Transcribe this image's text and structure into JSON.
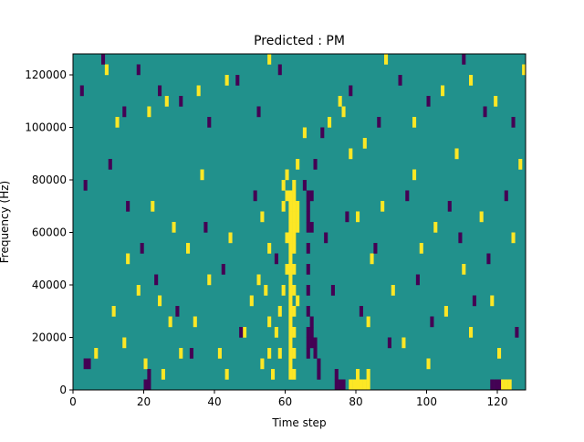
{
  "chart_data": {
    "type": "heatmap",
    "title": "Predicted : PM",
    "xlabel": "Time step",
    "ylabel": "Frequency (Hz)",
    "xlim": [
      0,
      128
    ],
    "ylim": [
      0,
      128000
    ],
    "x_ticks": [
      0,
      20,
      40,
      60,
      80,
      100,
      120
    ],
    "y_ticks": [
      0,
      20000,
      40000,
      60000,
      80000,
      100000,
      120000
    ],
    "x_tick_labels": [
      "0",
      "20",
      "40",
      "60",
      "80",
      "100",
      "120"
    ],
    "y_tick_labels": [
      "0",
      "20000",
      "40000",
      "60000",
      "80000",
      "100000",
      "120000"
    ],
    "grid": false,
    "legend": false,
    "colors": {
      "background": "#21918c",
      "high": "#fde725",
      "low": "#440154"
    },
    "background_value": 0,
    "cell_height_hz": 4000,
    "cells": [
      [
        61,
        4000,
        1
      ],
      [
        61,
        8000,
        1
      ],
      [
        61,
        12000,
        1
      ],
      [
        61,
        16000,
        1
      ],
      [
        61,
        20000,
        1
      ],
      [
        61,
        24000,
        1
      ],
      [
        61,
        28000,
        1
      ],
      [
        61,
        32000,
        1
      ],
      [
        61,
        36000,
        1
      ],
      [
        61,
        40000,
        1
      ],
      [
        61,
        44000,
        1
      ],
      [
        61,
        48000,
        1
      ],
      [
        61,
        52000,
        1
      ],
      [
        61,
        56000,
        1
      ],
      [
        61,
        60000,
        1
      ],
      [
        61,
        64000,
        1
      ],
      [
        61,
        68000,
        1
      ],
      [
        61,
        72000,
        1
      ],
      [
        62,
        4000,
        1
      ],
      [
        62,
        12000,
        1
      ],
      [
        62,
        20000,
        1
      ],
      [
        62,
        28000,
        1
      ],
      [
        62,
        36000,
        1
      ],
      [
        62,
        44000,
        1
      ],
      [
        62,
        52000,
        1
      ],
      [
        62,
        56000,
        1
      ],
      [
        62,
        60000,
        1
      ],
      [
        62,
        64000,
        1
      ],
      [
        62,
        68000,
        1
      ],
      [
        62,
        72000,
        1
      ],
      [
        62,
        76000,
        1
      ],
      [
        63,
        32000,
        1
      ],
      [
        63,
        60000,
        1
      ],
      [
        63,
        64000,
        1
      ],
      [
        63,
        68000,
        1
      ],
      [
        63,
        84000,
        1
      ],
      [
        60,
        56000,
        1
      ],
      [
        60,
        72000,
        1
      ],
      [
        60,
        80000,
        1
      ],
      [
        59,
        68000,
        1
      ],
      [
        59,
        76000,
        1
      ],
      [
        78,
        0,
        1
      ],
      [
        79,
        0,
        1
      ],
      [
        80,
        0,
        1
      ],
      [
        81,
        0,
        1
      ],
      [
        82,
        0,
        1
      ],
      [
        83,
        0,
        1
      ],
      [
        80,
        4000,
        1
      ],
      [
        83,
        4000,
        1
      ],
      [
        121,
        0,
        1
      ],
      [
        122,
        0,
        1
      ],
      [
        123,
        0,
        1
      ],
      [
        20,
        0,
        -1
      ],
      [
        21,
        0,
        -1
      ],
      [
        21,
        4000,
        -1
      ],
      [
        4,
        8000,
        -1
      ],
      [
        3,
        8000,
        -1
      ],
      [
        66,
        12000,
        -1
      ],
      [
        66,
        16000,
        -1
      ],
      [
        66,
        20000,
        -1
      ],
      [
        67,
        16000,
        -1
      ],
      [
        67,
        20000,
        -1
      ],
      [
        67,
        24000,
        -1
      ],
      [
        68,
        12000,
        -1
      ],
      [
        68,
        16000,
        -1
      ],
      [
        66,
        28000,
        -1
      ],
      [
        66,
        36000,
        -1
      ],
      [
        66,
        44000,
        -1
      ],
      [
        66,
        52000,
        -1
      ],
      [
        66,
        60000,
        -1
      ],
      [
        66,
        64000,
        -1
      ],
      [
        66,
        68000,
        -1
      ],
      [
        66,
        72000,
        -1
      ],
      [
        67,
        60000,
        -1
      ],
      [
        67,
        72000,
        -1
      ],
      [
        65,
        76000,
        -1
      ],
      [
        68,
        84000,
        -1
      ],
      [
        69,
        4000,
        -1
      ],
      [
        69,
        8000,
        -1
      ],
      [
        74,
        0,
        -1
      ],
      [
        75,
        0,
        -1
      ],
      [
        76,
        0,
        -1
      ],
      [
        74,
        4000,
        -1
      ],
      [
        118,
        0,
        -1
      ],
      [
        119,
        0,
        -1
      ],
      [
        120,
        0,
        -1
      ],
      [
        56,
        4000,
        1
      ],
      [
        55,
        12000,
        1
      ],
      [
        55,
        24000,
        1
      ],
      [
        58,
        12000,
        1
      ],
      [
        58,
        28000,
        1
      ],
      [
        57,
        20000,
        1
      ],
      [
        54,
        36000,
        1
      ],
      [
        55,
        52000,
        1
      ],
      [
        53,
        64000,
        1
      ],
      [
        60,
        44000,
        1
      ],
      [
        59,
        36000,
        1
      ],
      [
        6,
        12000,
        1
      ],
      [
        11,
        28000,
        1
      ],
      [
        14,
        16000,
        1
      ],
      [
        15,
        48000,
        1
      ],
      [
        18,
        36000,
        1
      ],
      [
        20,
        8000,
        1
      ],
      [
        22,
        68000,
        1
      ],
      [
        24,
        32000,
        1
      ],
      [
        25,
        4000,
        1
      ],
      [
        27,
        24000,
        1
      ],
      [
        28,
        60000,
        1
      ],
      [
        30,
        12000,
        1
      ],
      [
        32,
        52000,
        1
      ],
      [
        34,
        24000,
        1
      ],
      [
        36,
        80000,
        1
      ],
      [
        38,
        40000,
        1
      ],
      [
        41,
        12000,
        1
      ],
      [
        43,
        4000,
        1
      ],
      [
        44,
        56000,
        1
      ],
      [
        48,
        20000,
        1
      ],
      [
        50,
        32000,
        1
      ],
      [
        52,
        40000,
        1
      ],
      [
        53,
        8000,
        1
      ],
      [
        72,
        100000,
        1
      ],
      [
        76,
        104000,
        1
      ],
      [
        78,
        88000,
        1
      ],
      [
        80,
        64000,
        1
      ],
      [
        83,
        24000,
        1
      ],
      [
        84,
        48000,
        1
      ],
      [
        87,
        68000,
        1
      ],
      [
        90,
        36000,
        1
      ],
      [
        93,
        16000,
        1
      ],
      [
        96,
        80000,
        1
      ],
      [
        98,
        52000,
        1
      ],
      [
        100,
        8000,
        1
      ],
      [
        102,
        60000,
        1
      ],
      [
        105,
        28000,
        1
      ],
      [
        108,
        88000,
        1
      ],
      [
        110,
        44000,
        1
      ],
      [
        112,
        20000,
        1
      ],
      [
        115,
        64000,
        1
      ],
      [
        118,
        32000,
        1
      ],
      [
        120,
        12000,
        1
      ],
      [
        124,
        56000,
        1
      ],
      [
        126,
        84000,
        1
      ],
      [
        127,
        120000,
        1
      ],
      [
        9,
        120000,
        1
      ],
      [
        12,
        100000,
        1
      ],
      [
        21,
        104000,
        1
      ],
      [
        26,
        108000,
        1
      ],
      [
        35,
        112000,
        1
      ],
      [
        43,
        116000,
        1
      ],
      [
        55,
        124000,
        1
      ],
      [
        65,
        96000,
        1
      ],
      [
        75,
        108000,
        1
      ],
      [
        82,
        92000,
        1
      ],
      [
        88,
        124000,
        1
      ],
      [
        96,
        100000,
        1
      ],
      [
        104,
        112000,
        1
      ],
      [
        112,
        116000,
        1
      ],
      [
        119,
        108000,
        1
      ],
      [
        2,
        112000,
        -1
      ],
      [
        8,
        124000,
        -1
      ],
      [
        14,
        104000,
        -1
      ],
      [
        18,
        120000,
        -1
      ],
      [
        24,
        112000,
        -1
      ],
      [
        30,
        108000,
        -1
      ],
      [
        38,
        100000,
        -1
      ],
      [
        46,
        116000,
        -1
      ],
      [
        52,
        104000,
        -1
      ],
      [
        58,
        120000,
        -1
      ],
      [
        70,
        96000,
        -1
      ],
      [
        78,
        112000,
        -1
      ],
      [
        86,
        100000,
        -1
      ],
      [
        92,
        116000,
        -1
      ],
      [
        100,
        108000,
        -1
      ],
      [
        110,
        124000,
        -1
      ],
      [
        116,
        104000,
        -1
      ],
      [
        124,
        100000,
        -1
      ],
      [
        3,
        76000,
        -1
      ],
      [
        10,
        84000,
        -1
      ],
      [
        15,
        68000,
        -1
      ],
      [
        19,
        52000,
        -1
      ],
      [
        23,
        40000,
        -1
      ],
      [
        29,
        28000,
        -1
      ],
      [
        33,
        12000,
        -1
      ],
      [
        37,
        60000,
        -1
      ],
      [
        42,
        44000,
        -1
      ],
      [
        47,
        20000,
        -1
      ],
      [
        51,
        72000,
        -1
      ],
      [
        57,
        48000,
        -1
      ],
      [
        71,
        56000,
        -1
      ],
      [
        73,
        36000,
        -1
      ],
      [
        77,
        64000,
        -1
      ],
      [
        81,
        28000,
        -1
      ],
      [
        85,
        52000,
        -1
      ],
      [
        89,
        16000,
        -1
      ],
      [
        94,
        72000,
        -1
      ],
      [
        97,
        40000,
        -1
      ],
      [
        101,
        24000,
        -1
      ],
      [
        106,
        68000,
        -1
      ],
      [
        109,
        56000,
        -1
      ],
      [
        113,
        32000,
        -1
      ],
      [
        117,
        48000,
        -1
      ],
      [
        122,
        72000,
        -1
      ],
      [
        125,
        20000,
        -1
      ]
    ]
  }
}
